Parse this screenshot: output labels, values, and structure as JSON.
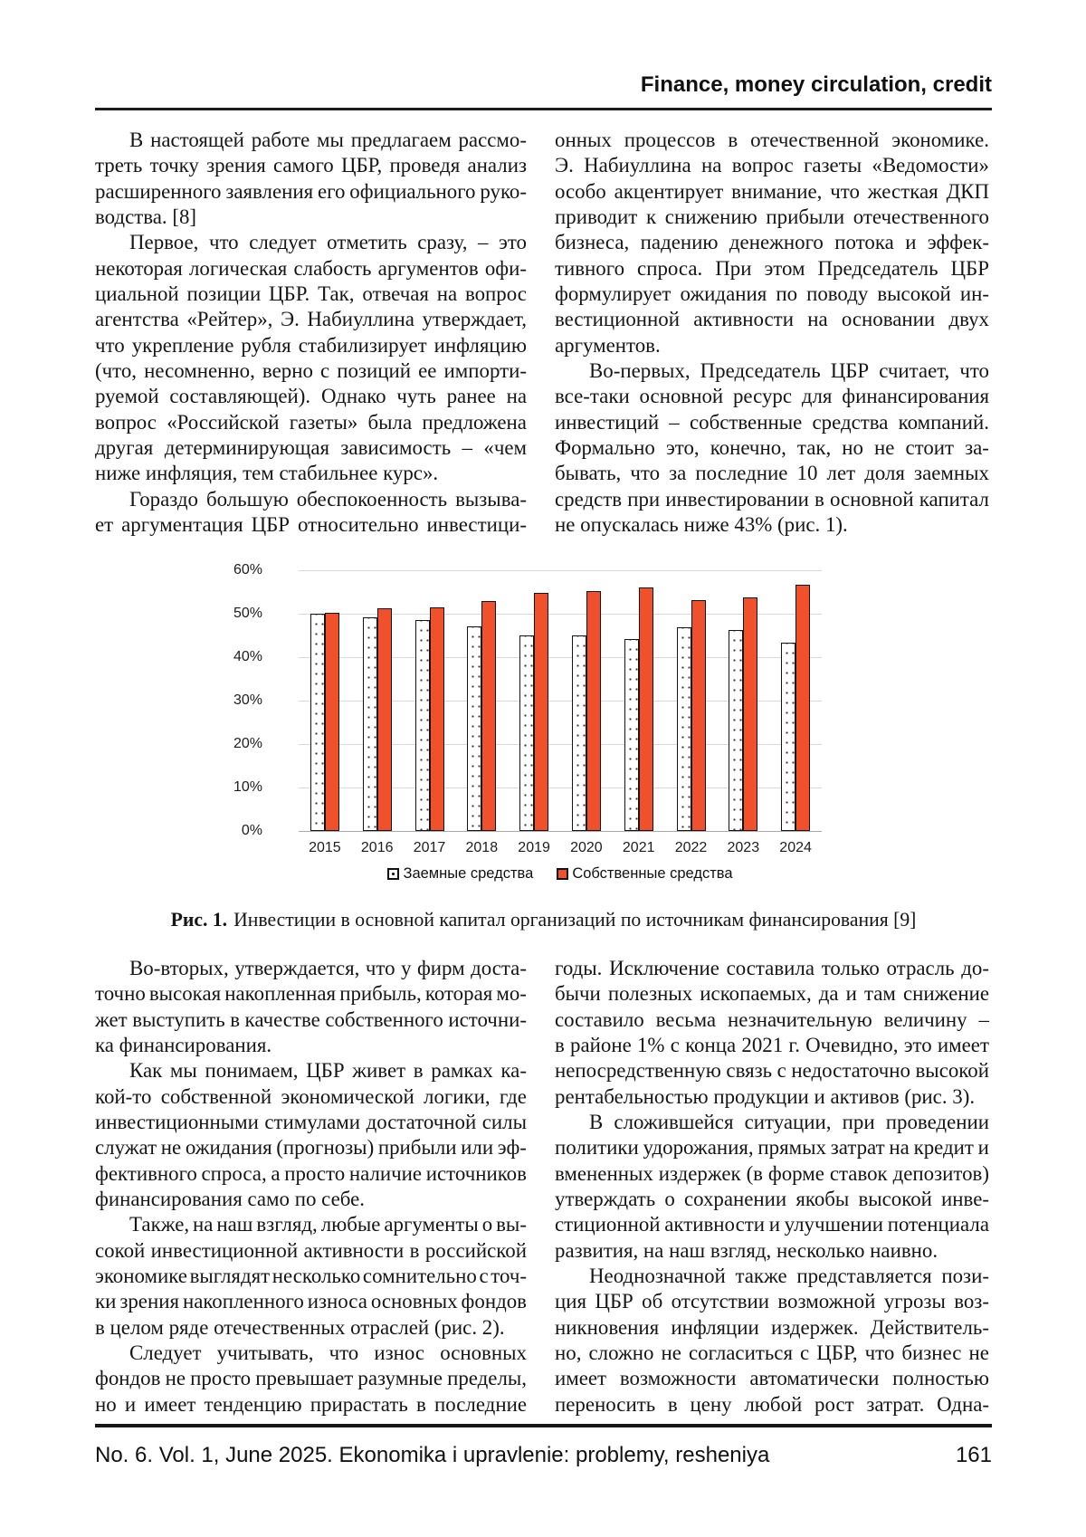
{
  "header": {
    "title": "Finance, money circulation, credit"
  },
  "columns_top": {
    "left": [
      {
        "t": "В настоящей работе мы предлагаем рассмо-",
        "s": 1
      },
      {
        "t": "треть точку зрения самого ЦБР, проведя анализ"
      },
      {
        "t": "расширенного заявления его официального руко-"
      },
      {
        "t": "водства. [8]",
        "e": 1
      },
      {
        "t": "Первое, что следует отметить сразу, – это",
        "s": 1
      },
      {
        "t": "некоторая логическая слабость аргументов офи-"
      },
      {
        "t": "циальной позиции ЦБР. Так, отвечая на вопрос"
      },
      {
        "t": "агентства «Рейтер», Э. Набиуллина утверждает,"
      },
      {
        "t": "что укрепление рубля стабилизирует инфляцию"
      },
      {
        "t": "(что, несомненно, верно с позиций ее импорти-"
      },
      {
        "t": "руемой составляющей). Однако чуть ранее на"
      },
      {
        "t": "вопрос «Российской газеты» была предложена"
      },
      {
        "t": "другая детерминирующая зависимость – «чем"
      },
      {
        "t": "ниже инфляция, тем стабильнее курс».",
        "e": 1
      },
      {
        "t": "Гораздо большую обеспокоенность вызыва-",
        "s": 1
      },
      {
        "t": "ет аргументация ЦБР относительно инвестици-"
      }
    ],
    "right": [
      {
        "t": "онных процессов в отечественной экономике."
      },
      {
        "t": "Э. Набиуллина на вопрос газеты «Ведомости»"
      },
      {
        "t": "особо акцентирует внимание, что жесткая ДКП"
      },
      {
        "t": "приводит к снижению прибыли отечественного"
      },
      {
        "t": "бизнеса, падению денежного потока и эффек-"
      },
      {
        "t": "тивного спроса. При этом Председатель ЦБР"
      },
      {
        "t": "формулирует ожидания по поводу высокой ин-"
      },
      {
        "t": "вестиционной активности на основании двух"
      },
      {
        "t": "аргументов.",
        "e": 1
      },
      {
        "t": "Во-первых, Председатель ЦБР считает, что",
        "s": 1
      },
      {
        "t": "все-таки основной ресурс для финансирования"
      },
      {
        "t": "инвестиций – собственные средства компаний."
      },
      {
        "t": "Формально это, конечно, так, но не стоит за-"
      },
      {
        "t": "бывать, что за последние 10 лет доля заемных"
      },
      {
        "t": "средств при инвестировании в основной капитал"
      },
      {
        "t": "не опускалась ниже 43% (рис. 1).",
        "e": 1
      }
    ]
  },
  "chart_data": {
    "type": "bar",
    "categories": [
      "2015",
      "2016",
      "2017",
      "2018",
      "2019",
      "2020",
      "2021",
      "2022",
      "2023",
      "2024"
    ],
    "series": [
      {
        "name": "Заемные средства",
        "values": [
          49.9,
          49.1,
          48.6,
          47.0,
          44.9,
          44.9,
          44.1,
          46.9,
          46.2,
          43.3
        ],
        "style": "white-dotted"
      },
      {
        "name": "Собственные средства",
        "values": [
          50.3,
          51.2,
          51.5,
          52.9,
          54.8,
          55.2,
          56.0,
          53.2,
          53.7,
          56.7
        ],
        "style": "solid",
        "color": "#F0512A"
      }
    ],
    "ylim": [
      0,
      60
    ],
    "ytick_labels": [
      "0%",
      "10%",
      "20%",
      "30%",
      "40%",
      "50%",
      "60%"
    ],
    "grid": true,
    "legend_position": "bottom"
  },
  "figure": {
    "label": "Рис. 1.",
    "text": "Инвестиции в основной капитал организаций по источникам финансирования [9]"
  },
  "columns_bottom": {
    "left": [
      {
        "t": "Во-вторых, утверждается, что у фирм доста-",
        "s": 1
      },
      {
        "t": "точно высокая накопленная прибыль, которая мо-"
      },
      {
        "t": "жет выступить в качестве собственного источни-"
      },
      {
        "t": "ка финансирования.",
        "e": 1
      },
      {
        "t": "Как мы понимаем, ЦБР живет в рамках ка-",
        "s": 1
      },
      {
        "t": "кой-то собственной экономической логики, где"
      },
      {
        "t": "инвестиционными стимулами достаточной силы"
      },
      {
        "t": "служат не ожидания (прогнозы) прибыли или эф-"
      },
      {
        "t": "фективного спроса, а просто наличие источников"
      },
      {
        "t": "финансирования само по себе.",
        "e": 1
      },
      {
        "t": "Также, на наш взгляд, любые аргументы о вы-",
        "s": 1
      },
      {
        "t": "сокой инвестиционной активности в российской"
      },
      {
        "t": "экономике выглядят несколько сомнительно с точ-"
      },
      {
        "t": "ки зрения накопленного износа основных фондов"
      },
      {
        "t": "в целом ряде отечественных отраслей (рис. 2).",
        "e": 1
      },
      {
        "t": "Следует учитывать, что износ основных",
        "s": 1
      },
      {
        "t": "фондов не просто превышает разумные пределы,"
      },
      {
        "t": "но и имеет тенденцию прирастать в последние"
      }
    ],
    "right": [
      {
        "t": "годы. Исключение составила только отрасль до-"
      },
      {
        "t": "бычи полезных ископаемых, да и там снижение"
      },
      {
        "t": "составило весьма незначительную величину –"
      },
      {
        "t": "в районе 1% с конца 2021 г. Очевидно, это имеет"
      },
      {
        "t": "непосредственную связь с недостаточно высокой"
      },
      {
        "t": "рентабельностью продукции и активов (рис. 3).",
        "e": 1
      },
      {
        "t": "В сложившейся ситуации, при проведении",
        "s": 1
      },
      {
        "t": "политики удорожания, прямых затрат на кредит и"
      },
      {
        "t": "вмененных издержек (в форме ставок депозитов)"
      },
      {
        "t": "утверждать о сохранении якобы высокой инве-"
      },
      {
        "t": "стиционной активности и улучшении потенциала"
      },
      {
        "t": "развития, на наш взгляд, несколько наивно.",
        "e": 1
      },
      {
        "t": "Неоднозначной также представляется пози-",
        "s": 1
      },
      {
        "t": "ция ЦБР об отсутствии возможной угрозы воз-"
      },
      {
        "t": "никновения инфляции издержек. Действитель-"
      },
      {
        "t": "но, сложно не согласиться с ЦБР, что бизнес не"
      },
      {
        "t": "имеет возможности автоматически полностью"
      },
      {
        "t": "переносить в цену любой рост затрат. Одна-"
      }
    ]
  },
  "footer": {
    "left": "No. 6. Vol. 1, June 2025. Ekonomika i upravlenie: problemy, resheniya",
    "page": "161"
  }
}
